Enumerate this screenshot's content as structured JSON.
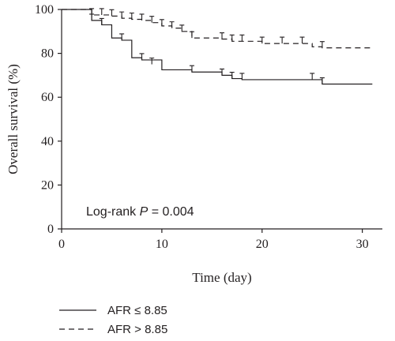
{
  "chart_data": {
    "type": "line",
    "xlabel": "Time (day)",
    "ylabel": "Overall survival (%)",
    "xlim": [
      0,
      32
    ],
    "ylim": [
      0,
      100
    ],
    "xticks": [
      0,
      10,
      20,
      30
    ],
    "yticks": [
      0,
      20,
      40,
      60,
      80,
      100
    ],
    "grid": false,
    "legend_placement": "bottom-left",
    "annotation": {
      "prefix": "Log-rank ",
      "italic": "P",
      "suffix": " = 0.004"
    },
    "series": [
      {
        "name": "AFR ≤ 8.85",
        "style": "solid",
        "step_x": [
          0,
          3,
          4,
          5,
          6,
          7,
          8,
          10,
          13,
          16,
          17,
          18,
          26,
          31
        ],
        "step_y": [
          100,
          95,
          93,
          87,
          86,
          78,
          77,
          72.5,
          71.5,
          70,
          68.5,
          68,
          66,
          66
        ],
        "censor_x": [
          3,
          4,
          6,
          8,
          9,
          13,
          16,
          17,
          18,
          25,
          26
        ],
        "censor_y": [
          95,
          93,
          86,
          77,
          75,
          71.5,
          70,
          68.5,
          68,
          68,
          66
        ]
      },
      {
        "name": "AFR > 8.85",
        "style": "dashed",
        "step_x": [
          0,
          3,
          5,
          6,
          7,
          8,
          9,
          10,
          11,
          12,
          13,
          16,
          17,
          20,
          25,
          26,
          31
        ],
        "step_y": [
          100,
          97.5,
          97,
          96,
          95.5,
          95,
          94,
          92.5,
          91.5,
          90,
          87,
          86.5,
          85.5,
          84.5,
          83,
          82.5,
          82.5
        ],
        "censor_x": [
          3,
          4,
          5,
          6,
          7,
          8,
          9,
          10,
          11,
          12,
          13,
          16,
          17,
          18,
          20,
          22,
          24,
          26
        ],
        "censor_y": [
          97.5,
          97.5,
          97,
          96,
          95.5,
          95,
          94,
          92.5,
          91.5,
          90,
          87,
          86.5,
          85.5,
          85.5,
          84.5,
          84.5,
          84.5,
          82.5
        ]
      }
    ]
  }
}
